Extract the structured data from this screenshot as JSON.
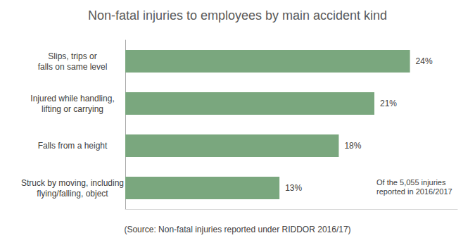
{
  "chart_data": {
    "type": "bar",
    "orientation": "horizontal",
    "title": "Non-fatal injuries to employees by main accident kind",
    "categories": [
      "Slips, trips or\nfalls on same level",
      "Injured while handling,\nlifting or carrying",
      "Falls from a height",
      "Struck by moving, including\nflying/falling, object"
    ],
    "values": [
      24,
      21,
      18,
      13
    ],
    "value_labels": [
      "24%",
      "21%",
      "18%",
      "13%"
    ],
    "color": "#7aa77e",
    "xlim": [
      0,
      28
    ],
    "grid": false,
    "data_labels": true,
    "tick_labels": "y",
    "annotations": [
      "Of the 5,055 injuries\nreported in 2016/2017",
      "(Source: Non-fatal injuries reported under RIDDOR 2016/17)"
    ]
  }
}
